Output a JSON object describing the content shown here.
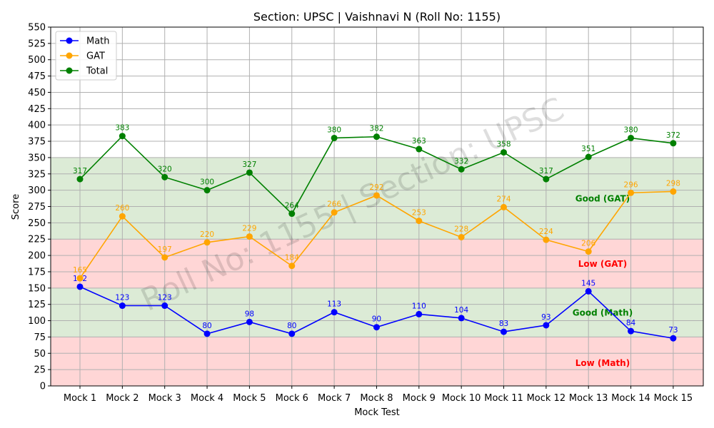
{
  "chart_data": {
    "type": "line",
    "title": "Section: UPSC | Vaishnavi N (Roll No: 1155)",
    "xlabel": "Mock Test",
    "ylabel": "Score",
    "ylim": [
      0,
      550
    ],
    "yticks": [
      0,
      25,
      50,
      75,
      100,
      125,
      150,
      175,
      200,
      225,
      250,
      275,
      300,
      325,
      350,
      375,
      400,
      425,
      450,
      475,
      500,
      525,
      550
    ],
    "grid": true,
    "legend_position": "top-left",
    "watermark": "Roll No: 1155 | Section: UPSC",
    "categories": [
      "Mock 1",
      "Mock 2",
      "Mock 3",
      "Mock 4",
      "Mock 5",
      "Mock 6",
      "Mock 7",
      "Mock 8",
      "Mock 9",
      "Mock 10",
      "Mock 11",
      "Mock 12",
      "Mock 13",
      "Mock 14",
      "Mock 15"
    ],
    "series": [
      {
        "name": "Math",
        "color": "#0000ff",
        "values": [
          152,
          123,
          123,
          80,
          98,
          80,
          113,
          90,
          110,
          104,
          83,
          93,
          145,
          84,
          73
        ]
      },
      {
        "name": "GAT",
        "color": "#ffa500",
        "values": [
          165,
          260,
          197,
          220,
          229,
          184,
          266,
          292,
          253,
          228,
          274,
          224,
          206,
          296,
          298
        ]
      },
      {
        "name": "Total",
        "color": "#008000",
        "values": [
          317,
          383,
          320,
          300,
          327,
          264,
          380,
          382,
          363,
          332,
          358,
          317,
          351,
          380,
          372
        ]
      }
    ],
    "bands": [
      {
        "label": "Low (Math)",
        "from": 0,
        "to": 75,
        "fill": "#ffd6d6",
        "label_color": "#ff0000",
        "label_y": 35
      },
      {
        "label": "Good (Math)",
        "from": 75,
        "to": 150,
        "fill": "#dcebd6",
        "label_color": "#008000",
        "label_y": 112
      },
      {
        "label": "Low (GAT)",
        "from": 150,
        "to": 225,
        "fill": "#ffd6d6",
        "label_color": "#ff0000",
        "label_y": 187
      },
      {
        "label": "Good (GAT)",
        "from": 225,
        "to": 350,
        "fill": "#dcebd6",
        "label_color": "#008000",
        "label_y": 287
      }
    ]
  }
}
